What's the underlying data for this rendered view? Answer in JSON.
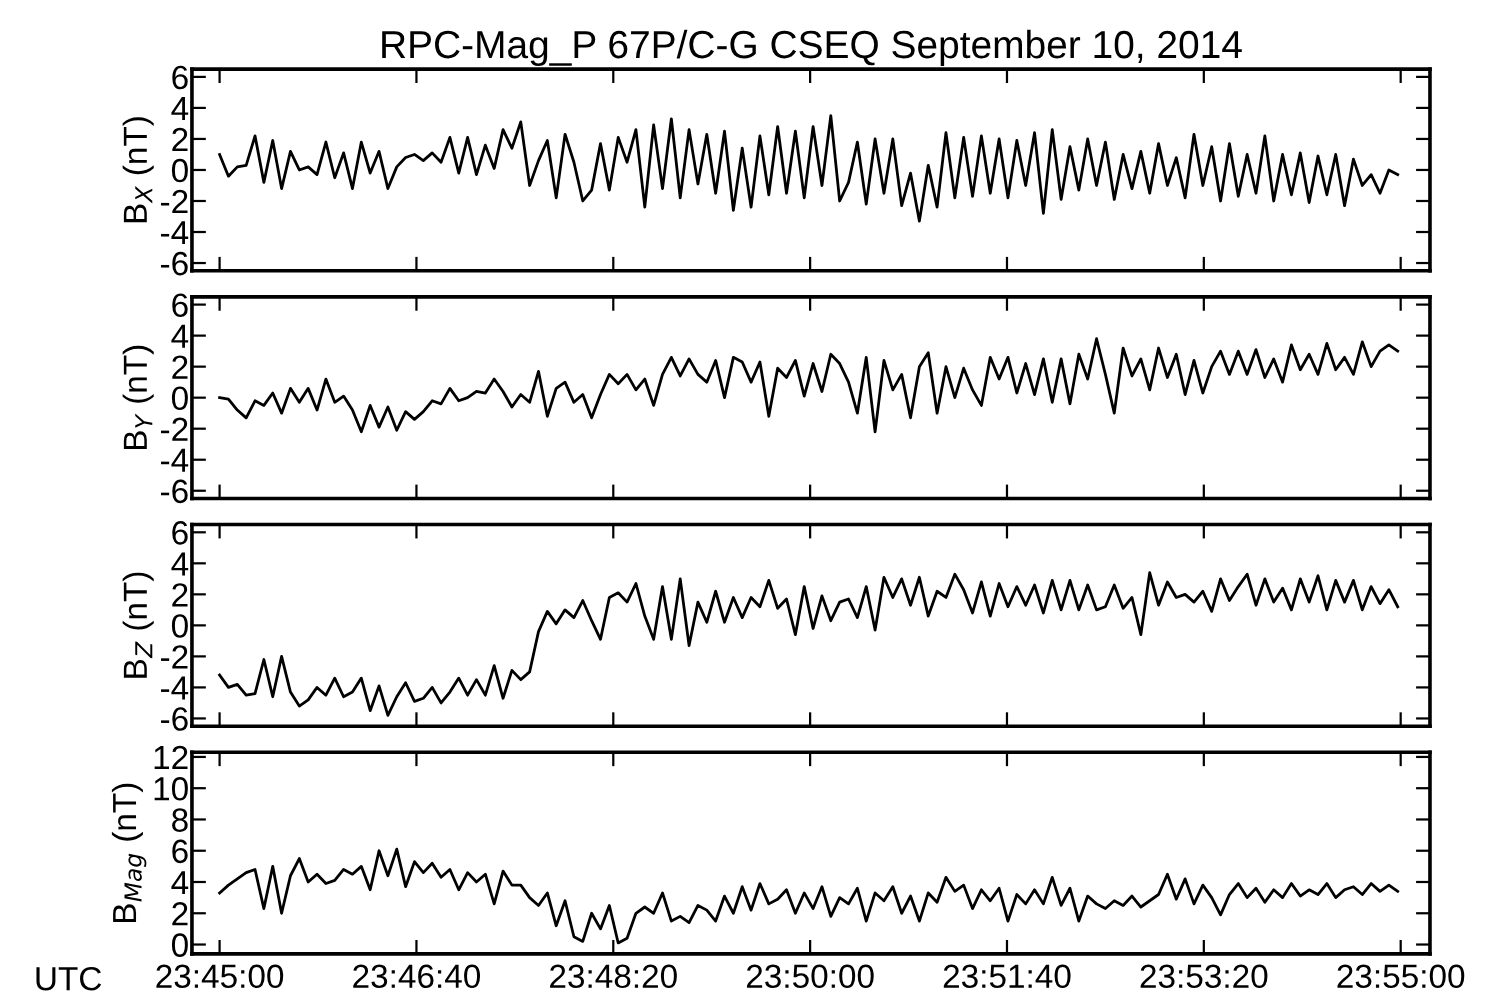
{
  "chart_data": [
    {
      "type": "line",
      "title": "RPC-Mag_P 67P/C-G CSEQ September 10, 2014",
      "ylabel": "B$_{X}$ (nT)",
      "tick_labels": "y",
      "x": [
        23.75,
        23.75125,
        23.7525,
        23.75375,
        23.755,
        23.75625,
        23.7575,
        23.75875,
        23.76,
        23.76125,
        23.7625,
        23.76375,
        23.765,
        23.76625,
        23.7675,
        23.76875,
        23.77,
        23.77125,
        23.7725,
        23.77375,
        23.775,
        23.77625,
        23.7775,
        23.77875,
        23.78,
        23.78125,
        23.7825,
        23.78375,
        23.785,
        23.78625,
        23.7875,
        23.78875,
        23.79,
        23.79125,
        23.7925,
        23.79375,
        23.795,
        23.79625,
        23.7975,
        23.79875,
        23.8,
        23.80125,
        23.8025,
        23.80375,
        23.805,
        23.80625,
        23.8075,
        23.80875,
        23.81,
        23.81125,
        23.8125,
        23.81375,
        23.815,
        23.81625,
        23.8175,
        23.81875,
        23.82,
        23.82125,
        23.8225,
        23.82375,
        23.825,
        23.82625,
        23.8275,
        23.82875,
        23.83,
        23.83125,
        23.8325,
        23.83375,
        23.835,
        23.83625,
        23.8375,
        23.83875,
        23.84,
        23.84125,
        23.8425,
        23.84375,
        23.845,
        23.84625,
        23.8475,
        23.84875,
        23.85,
        23.85125,
        23.8525,
        23.85375,
        23.855,
        23.85625,
        23.8575,
        23.85875,
        23.86,
        23.86125,
        23.8625,
        23.86375,
        23.865,
        23.86625,
        23.8675,
        23.86875,
        23.87,
        23.87125,
        23.8725,
        23.87375,
        23.875,
        23.87625,
        23.8775,
        23.87875,
        23.88,
        23.88125,
        23.8825,
        23.88375,
        23.885,
        23.88625,
        23.8875,
        23.88875,
        23.89,
        23.89125,
        23.8925,
        23.89375,
        23.895,
        23.89625,
        23.8975,
        23.89875,
        23.9,
        23.90125,
        23.9025,
        23.90375,
        23.905,
        23.90625,
        23.9075,
        23.90875,
        23.91,
        23.91125,
        23.9125,
        23.91375,
        23.915,
        23.91625
      ],
      "series": [
        {
          "color": "#000000",
          "values": [
            1.0,
            -0.4,
            0.2,
            0.3,
            2.2,
            -0.8,
            1.9,
            -1.2,
            1.2,
            0.0,
            0.2,
            -0.3,
            1.8,
            -0.5,
            1.1,
            -1.2,
            1.8,
            -0.2,
            1.2,
            -1.2,
            0.2,
            0.8,
            1.0,
            0.6,
            1.1,
            0.5,
            2.1,
            -0.2,
            2.1,
            -0.3,
            1.6,
            0.1,
            2.6,
            1.4,
            3.1,
            -1.0,
            0.6,
            1.9,
            -1.8,
            2.3,
            0.5,
            -2.0,
            -1.3,
            1.7,
            -1.3,
            2.1,
            0.5,
            2.6,
            -2.4,
            2.9,
            -1.2,
            3.3,
            -1.8,
            2.6,
            -0.9,
            2.3,
            -1.5,
            2.5,
            -2.6,
            1.4,
            -2.4,
            2.2,
            -1.6,
            2.8,
            -1.5,
            2.5,
            -1.8,
            2.8,
            -1.0,
            3.5,
            -2.0,
            -0.8,
            1.8,
            -2.2,
            2.0,
            -1.5,
            2.0,
            -2.3,
            -0.2,
            -3.3,
            0.3,
            -2.4,
            2.4,
            -1.8,
            2.1,
            -1.7,
            2.2,
            -1.5,
            2.0,
            -1.8,
            1.9,
            -1.0,
            2.4,
            -2.8,
            2.6,
            -1.9,
            1.5,
            -1.3,
            2.0,
            -1.0,
            1.8,
            -1.9,
            1.0,
            -1.2,
            1.2,
            -1.5,
            1.7,
            -1.0,
            0.8,
            -1.8,
            2.3,
            -1.0,
            1.5,
            -2.0,
            1.7,
            -1.7,
            1.0,
            -1.5,
            2.2,
            -2.0,
            1.0,
            -1.6,
            1.1,
            -2.1,
            0.9,
            -1.6,
            1.0,
            -2.3,
            0.7,
            -1.0,
            -0.3,
            -1.5,
            0.0,
            -0.3
          ]
        }
      ],
      "xlim": [
        23.7461,
        23.9208
      ],
      "ylim": [
        -6.5,
        6.5
      ],
      "yticks": [
        6,
        4,
        2,
        0,
        -2,
        -4,
        -6
      ]
    },
    {
      "type": "line",
      "ylabel": "B$_{Y}$ (nT)",
      "tick_labels": "y",
      "x": [
        23.75,
        23.75125,
        23.7525,
        23.75375,
        23.755,
        23.75625,
        23.7575,
        23.75875,
        23.76,
        23.76125,
        23.7625,
        23.76375,
        23.765,
        23.76625,
        23.7675,
        23.76875,
        23.77,
        23.77125,
        23.7725,
        23.77375,
        23.775,
        23.77625,
        23.7775,
        23.77875,
        23.78,
        23.78125,
        23.7825,
        23.78375,
        23.785,
        23.78625,
        23.7875,
        23.78875,
        23.79,
        23.79125,
        23.7925,
        23.79375,
        23.795,
        23.79625,
        23.7975,
        23.79875,
        23.8,
        23.80125,
        23.8025,
        23.80375,
        23.805,
        23.80625,
        23.8075,
        23.80875,
        23.81,
        23.81125,
        23.8125,
        23.81375,
        23.815,
        23.81625,
        23.8175,
        23.81875,
        23.82,
        23.82125,
        23.8225,
        23.82375,
        23.825,
        23.82625,
        23.8275,
        23.82875,
        23.83,
        23.83125,
        23.8325,
        23.83375,
        23.835,
        23.83625,
        23.8375,
        23.83875,
        23.84,
        23.84125,
        23.8425,
        23.84375,
        23.845,
        23.84625,
        23.8475,
        23.84875,
        23.85,
        23.85125,
        23.8525,
        23.85375,
        23.855,
        23.85625,
        23.8575,
        23.85875,
        23.86,
        23.86125,
        23.8625,
        23.86375,
        23.865,
        23.86625,
        23.8675,
        23.86875,
        23.87,
        23.87125,
        23.8725,
        23.87375,
        23.875,
        23.87625,
        23.8775,
        23.87875,
        23.88,
        23.88125,
        23.8825,
        23.88375,
        23.885,
        23.88625,
        23.8875,
        23.88875,
        23.89,
        23.89125,
        23.8925,
        23.89375,
        23.895,
        23.89625,
        23.8975,
        23.89875,
        23.9,
        23.90125,
        23.9025,
        23.90375,
        23.905,
        23.90625,
        23.9075,
        23.90875,
        23.91,
        23.91125,
        23.9125,
        23.91375,
        23.915,
        23.91625
      ],
      "series": [
        {
          "color": "#000000",
          "values": [
            0.0,
            -0.1,
            -0.8,
            -1.3,
            -0.2,
            -0.5,
            0.3,
            -1.0,
            0.6,
            -0.3,
            0.6,
            -0.8,
            1.2,
            -0.3,
            0.1,
            -0.8,
            -2.2,
            -0.5,
            -1.9,
            -0.6,
            -2.1,
            -0.9,
            -1.4,
            -0.9,
            -0.2,
            -0.4,
            0.6,
            -0.2,
            0.0,
            0.4,
            0.3,
            1.2,
            0.4,
            -0.6,
            0.2,
            -0.3,
            1.7,
            -1.2,
            0.6,
            1.0,
            -0.3,
            0.2,
            -1.3,
            0.2,
            1.5,
            0.9,
            1.5,
            0.5,
            1.2,
            -0.5,
            1.5,
            2.6,
            1.4,
            2.5,
            1.5,
            1.0,
            2.4,
            0.0,
            2.6,
            2.3,
            1.0,
            2.3,
            -1.2,
            1.9,
            1.3,
            2.4,
            0.1,
            2.2,
            0.4,
            2.8,
            2.2,
            1.0,
            -1.0,
            2.6,
            -2.2,
            2.4,
            0.5,
            1.5,
            -1.3,
            2.0,
            2.9,
            -1.0,
            2.0,
            0.0,
            1.9,
            0.5,
            -0.5,
            2.6,
            1.2,
            2.6,
            0.3,
            2.2,
            0.2,
            2.5,
            -0.3,
            2.5,
            -0.4,
            2.8,
            1.2,
            3.8,
            1.5,
            -1.0,
            3.2,
            1.4,
            2.5,
            0.5,
            3.2,
            1.3,
            2.8,
            0.2,
            2.4,
            0.3,
            2.0,
            3.0,
            1.5,
            3.0,
            1.5,
            3.1,
            1.3,
            2.5,
            1.0,
            3.4,
            1.8,
            2.8,
            1.5,
            3.5,
            1.8,
            2.6,
            1.5,
            3.6,
            2.0,
            3.0,
            3.4,
            3.0
          ]
        }
      ],
      "xlim": [
        23.7461,
        23.9208
      ],
      "ylim": [
        -6.5,
        6.5
      ],
      "yticks": [
        6,
        4,
        2,
        0,
        -2,
        -4,
        -6
      ]
    },
    {
      "type": "line",
      "ylabel": "B$_{Z}$ (nT)",
      "tick_labels": "y",
      "x": [
        23.75,
        23.75125,
        23.7525,
        23.75375,
        23.755,
        23.75625,
        23.7575,
        23.75875,
        23.76,
        23.76125,
        23.7625,
        23.76375,
        23.765,
        23.76625,
        23.7675,
        23.76875,
        23.77,
        23.77125,
        23.7725,
        23.77375,
        23.775,
        23.77625,
        23.7775,
        23.77875,
        23.78,
        23.78125,
        23.7825,
        23.78375,
        23.785,
        23.78625,
        23.7875,
        23.78875,
        23.79,
        23.79125,
        23.7925,
        23.79375,
        23.795,
        23.79625,
        23.7975,
        23.79875,
        23.8,
        23.80125,
        23.8025,
        23.80375,
        23.805,
        23.80625,
        23.8075,
        23.80875,
        23.81,
        23.81125,
        23.8125,
        23.81375,
        23.815,
        23.81625,
        23.8175,
        23.81875,
        23.82,
        23.82125,
        23.8225,
        23.82375,
        23.825,
        23.82625,
        23.8275,
        23.82875,
        23.83,
        23.83125,
        23.8325,
        23.83375,
        23.835,
        23.83625,
        23.8375,
        23.83875,
        23.84,
        23.84125,
        23.8425,
        23.84375,
        23.845,
        23.84625,
        23.8475,
        23.84875,
        23.85,
        23.85125,
        23.8525,
        23.85375,
        23.855,
        23.85625,
        23.8575,
        23.85875,
        23.86,
        23.86125,
        23.8625,
        23.86375,
        23.865,
        23.86625,
        23.8675,
        23.86875,
        23.87,
        23.87125,
        23.8725,
        23.87375,
        23.875,
        23.87625,
        23.8775,
        23.87875,
        23.88,
        23.88125,
        23.8825,
        23.88375,
        23.885,
        23.88625,
        23.8875,
        23.88875,
        23.89,
        23.89125,
        23.8925,
        23.89375,
        23.895,
        23.89625,
        23.8975,
        23.89875,
        23.9,
        23.90125,
        23.9025,
        23.90375,
        23.905,
        23.90625,
        23.9075,
        23.90875,
        23.91,
        23.91125,
        23.9125,
        23.91375,
        23.915,
        23.91625
      ],
      "series": [
        {
          "color": "#000000",
          "values": [
            -3.2,
            -4.0,
            -3.8,
            -4.5,
            -4.4,
            -2.2,
            -4.6,
            -2.0,
            -4.3,
            -5.2,
            -4.8,
            -4.0,
            -4.5,
            -3.4,
            -4.6,
            -4.3,
            -3.4,
            -5.5,
            -3.9,
            -5.8,
            -4.6,
            -3.7,
            -4.9,
            -4.7,
            -4.0,
            -5.0,
            -4.3,
            -3.4,
            -4.5,
            -3.5,
            -4.5,
            -2.6,
            -4.7,
            -2.9,
            -3.5,
            -3.0,
            -0.4,
            0.9,
            0.1,
            1.0,
            0.5,
            1.6,
            0.3,
            -0.9,
            1.8,
            2.1,
            1.5,
            2.7,
            0.6,
            -0.9,
            2.5,
            -0.9,
            3.0,
            -1.3,
            1.5,
            0.2,
            2.2,
            0.2,
            1.8,
            0.5,
            1.8,
            1.2,
            2.9,
            1.1,
            1.7,
            -0.6,
            2.5,
            -0.2,
            1.9,
            0.3,
            1.5,
            1.7,
            0.5,
            2.5,
            -0.3,
            3.1,
            1.8,
            3.0,
            1.3,
            3.1,
            0.6,
            2.2,
            1.8,
            3.3,
            2.3,
            0.8,
            2.8,
            0.6,
            2.7,
            1.2,
            2.5,
            1.3,
            2.6,
            0.8,
            2.9,
            1.0,
            2.9,
            1.0,
            2.6,
            1.0,
            1.2,
            2.6,
            1.1,
            1.8,
            -0.6,
            3.4,
            1.3,
            2.8,
            1.8,
            2.0,
            1.5,
            2.2,
            0.9,
            3.0,
            1.6,
            2.5,
            3.3,
            1.3,
            3.0,
            1.5,
            2.4,
            1.0,
            3.0,
            1.5,
            3.2,
            1.0,
            2.9,
            1.5,
            2.9,
            1.0,
            2.5,
            1.4,
            2.3,
            1.2
          ]
        }
      ],
      "xlim": [
        23.7461,
        23.9208
      ],
      "ylim": [
        -6.5,
        6.5
      ],
      "yticks": [
        6,
        4,
        2,
        0,
        -2,
        -4,
        -6
      ]
    },
    {
      "type": "line",
      "ylabel": "B$_{Mag}$ (nT)",
      "xlabel": "UTC",
      "x": [
        23.75,
        23.75125,
        23.7525,
        23.75375,
        23.755,
        23.75625,
        23.7575,
        23.75875,
        23.76,
        23.76125,
        23.7625,
        23.76375,
        23.765,
        23.76625,
        23.7675,
        23.76875,
        23.77,
        23.77125,
        23.7725,
        23.77375,
        23.775,
        23.77625,
        23.7775,
        23.77875,
        23.78,
        23.78125,
        23.7825,
        23.78375,
        23.785,
        23.78625,
        23.7875,
        23.78875,
        23.79,
        23.79125,
        23.7925,
        23.79375,
        23.795,
        23.79625,
        23.7975,
        23.79875,
        23.8,
        23.80125,
        23.8025,
        23.80375,
        23.805,
        23.80625,
        23.8075,
        23.80875,
        23.81,
        23.81125,
        23.8125,
        23.81375,
        23.815,
        23.81625,
        23.8175,
        23.81875,
        23.82,
        23.82125,
        23.8225,
        23.82375,
        23.825,
        23.82625,
        23.8275,
        23.82875,
        23.83,
        23.83125,
        23.8325,
        23.83375,
        23.835,
        23.83625,
        23.8375,
        23.83875,
        23.84,
        23.84125,
        23.8425,
        23.84375,
        23.845,
        23.84625,
        23.8475,
        23.84875,
        23.85,
        23.85125,
        23.8525,
        23.85375,
        23.855,
        23.85625,
        23.8575,
        23.85875,
        23.86,
        23.86125,
        23.8625,
        23.86375,
        23.865,
        23.86625,
        23.8675,
        23.86875,
        23.87,
        23.87125,
        23.8725,
        23.87375,
        23.875,
        23.87625,
        23.8775,
        23.87875,
        23.88,
        23.88125,
        23.8825,
        23.88375,
        23.885,
        23.88625,
        23.8875,
        23.88875,
        23.89,
        23.89125,
        23.8925,
        23.89375,
        23.895,
        23.89625,
        23.8975,
        23.89875,
        23.9,
        23.90125,
        23.9025,
        23.90375,
        23.905,
        23.90625,
        23.9075,
        23.90875,
        23.91,
        23.91125,
        23.9125,
        23.91375,
        23.915,
        23.91625
      ],
      "series": [
        {
          "color": "#000000",
          "values": [
            3.3,
            3.8,
            4.2,
            4.6,
            4.8,
            2.3,
            5.0,
            2.0,
            4.4,
            5.5,
            4.0,
            4.5,
            3.9,
            4.1,
            4.8,
            4.5,
            5.0,
            3.5,
            6.0,
            4.4,
            6.1,
            3.7,
            5.3,
            4.6,
            5.2,
            4.3,
            4.8,
            3.5,
            4.6,
            4.0,
            4.5,
            2.6,
            4.7,
            3.8,
            3.8,
            3.0,
            2.5,
            3.3,
            1.2,
            2.8,
            0.5,
            0.2,
            2.0,
            1.0,
            2.5,
            0.1,
            0.4,
            2.0,
            2.4,
            2.0,
            3.3,
            1.5,
            1.8,
            1.4,
            2.5,
            2.2,
            1.5,
            3.1,
            2.0,
            3.7,
            2.2,
            3.9,
            2.6,
            2.9,
            3.5,
            2.0,
            3.3,
            2.3,
            3.7,
            1.8,
            3.0,
            2.6,
            3.6,
            1.5,
            3.3,
            2.8,
            3.7,
            2.0,
            3.1,
            1.5,
            3.3,
            2.7,
            4.3,
            3.4,
            3.8,
            2.3,
            3.5,
            2.8,
            3.6,
            1.5,
            3.2,
            2.6,
            3.5,
            2.6,
            4.3,
            2.5,
            3.6,
            1.5,
            3.1,
            2.6,
            2.3,
            2.8,
            2.5,
            3.1,
            2.4,
            2.8,
            3.2,
            4.5,
            2.9,
            4.2,
            2.6,
            3.8,
            3.0,
            1.9,
            3.2,
            3.9,
            3.0,
            3.6,
            2.7,
            3.5,
            3.0,
            3.9,
            3.1,
            3.5,
            3.2,
            3.9,
            3.0,
            3.5,
            3.7,
            3.2,
            3.9,
            3.4,
            3.8,
            3.4
          ]
        }
      ],
      "xlim": [
        23.7461,
        23.9208
      ],
      "ylim": [
        -0.6,
        12.3
      ],
      "yticks": [
        12,
        10,
        8,
        6,
        4,
        2,
        0
      ],
      "xticks": [
        {
          "value": 23.75,
          "label": "23:45:00"
        },
        {
          "value": 23.777778,
          "label": "23:46:40"
        },
        {
          "value": 23.805556,
          "label": "23:48:20"
        },
        {
          "value": 23.833333,
          "label": "23:50:00"
        },
        {
          "value": 23.861111,
          "label": "23:51:40"
        },
        {
          "value": 23.888889,
          "label": "23:53:20"
        },
        {
          "value": 23.916667,
          "label": "23:55:00"
        }
      ]
    }
  ]
}
